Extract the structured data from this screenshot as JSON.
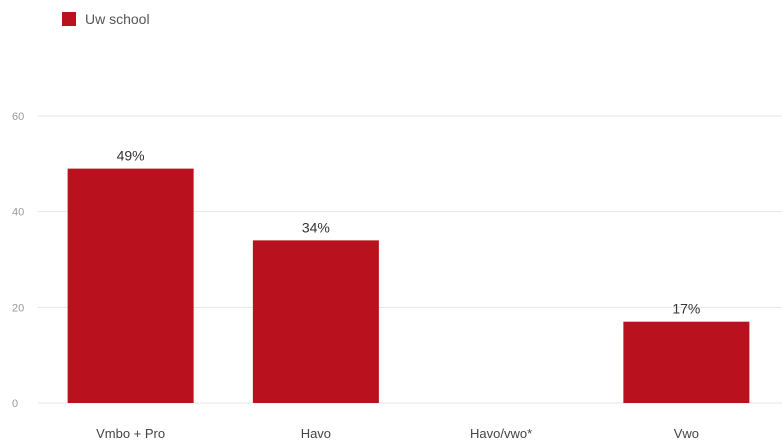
{
  "chart_data": {
    "type": "bar",
    "categories": [
      "Vmbo + Pro",
      "Havo",
      "Havo/vwo*",
      "Vwo"
    ],
    "series": [
      {
        "name": "Uw school",
        "values": [
          49,
          34,
          null,
          17
        ],
        "labels": [
          "49%",
          "34%",
          "",
          "17%"
        ],
        "color": "#b9121e"
      }
    ],
    "title": "",
    "xlabel": "",
    "ylabel": "",
    "ylim": [
      0,
      60
    ],
    "yticks": [
      0,
      20,
      40,
      60
    ],
    "grid": true,
    "legend_position": "top-left"
  }
}
